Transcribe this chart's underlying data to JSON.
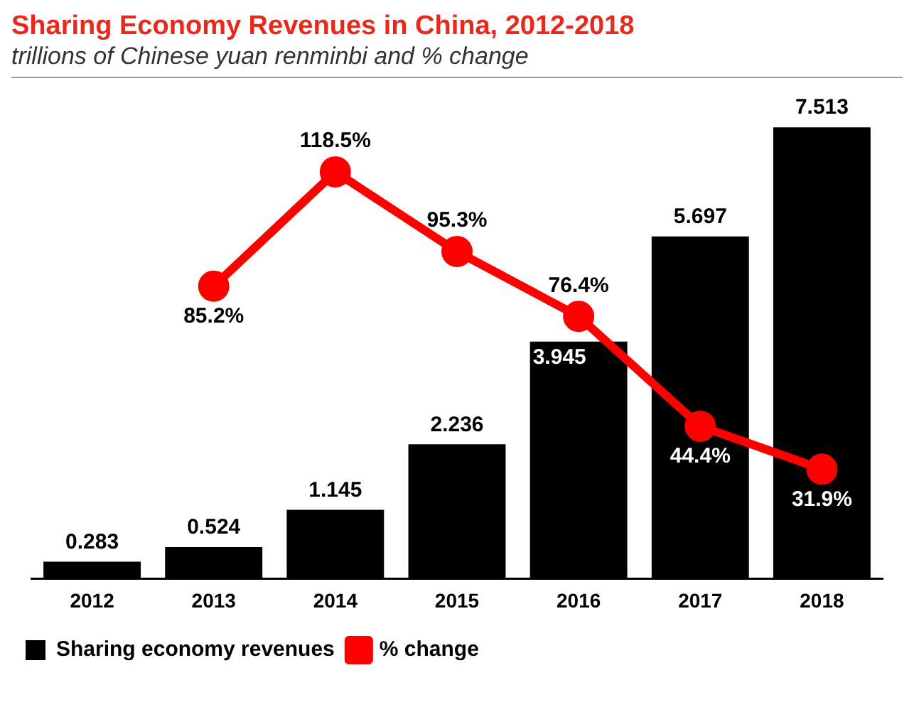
{
  "chart_data": {
    "type": "bar",
    "title": "Sharing Economy Revenues in China, 2012-2018",
    "subtitle": "trillions of Chinese yuan renminbi and % change",
    "categories": [
      "2012",
      "2013",
      "2014",
      "2015",
      "2016",
      "2017",
      "2018"
    ],
    "series": [
      {
        "name": "Sharing economy revenues",
        "color": "#000000",
        "values": [
          0.283,
          0.524,
          1.145,
          2.236,
          3.945,
          5.697,
          7.513
        ]
      },
      {
        "name": "% change",
        "type": "line",
        "axis": "y2",
        "color": "#ff0000",
        "marker": "circle",
        "value_labels": [
          null,
          "85.2%",
          "118.5%",
          "95.3%",
          "76.4%",
          "44.4%",
          "31.9%"
        ],
        "values": [
          null,
          85.2,
          118.5,
          95.3,
          76.4,
          44.4,
          31.9
        ]
      }
    ],
    "tick_labels": "x",
    "data_labels": true,
    "grid": false,
    "legend": "bottom left"
  }
}
